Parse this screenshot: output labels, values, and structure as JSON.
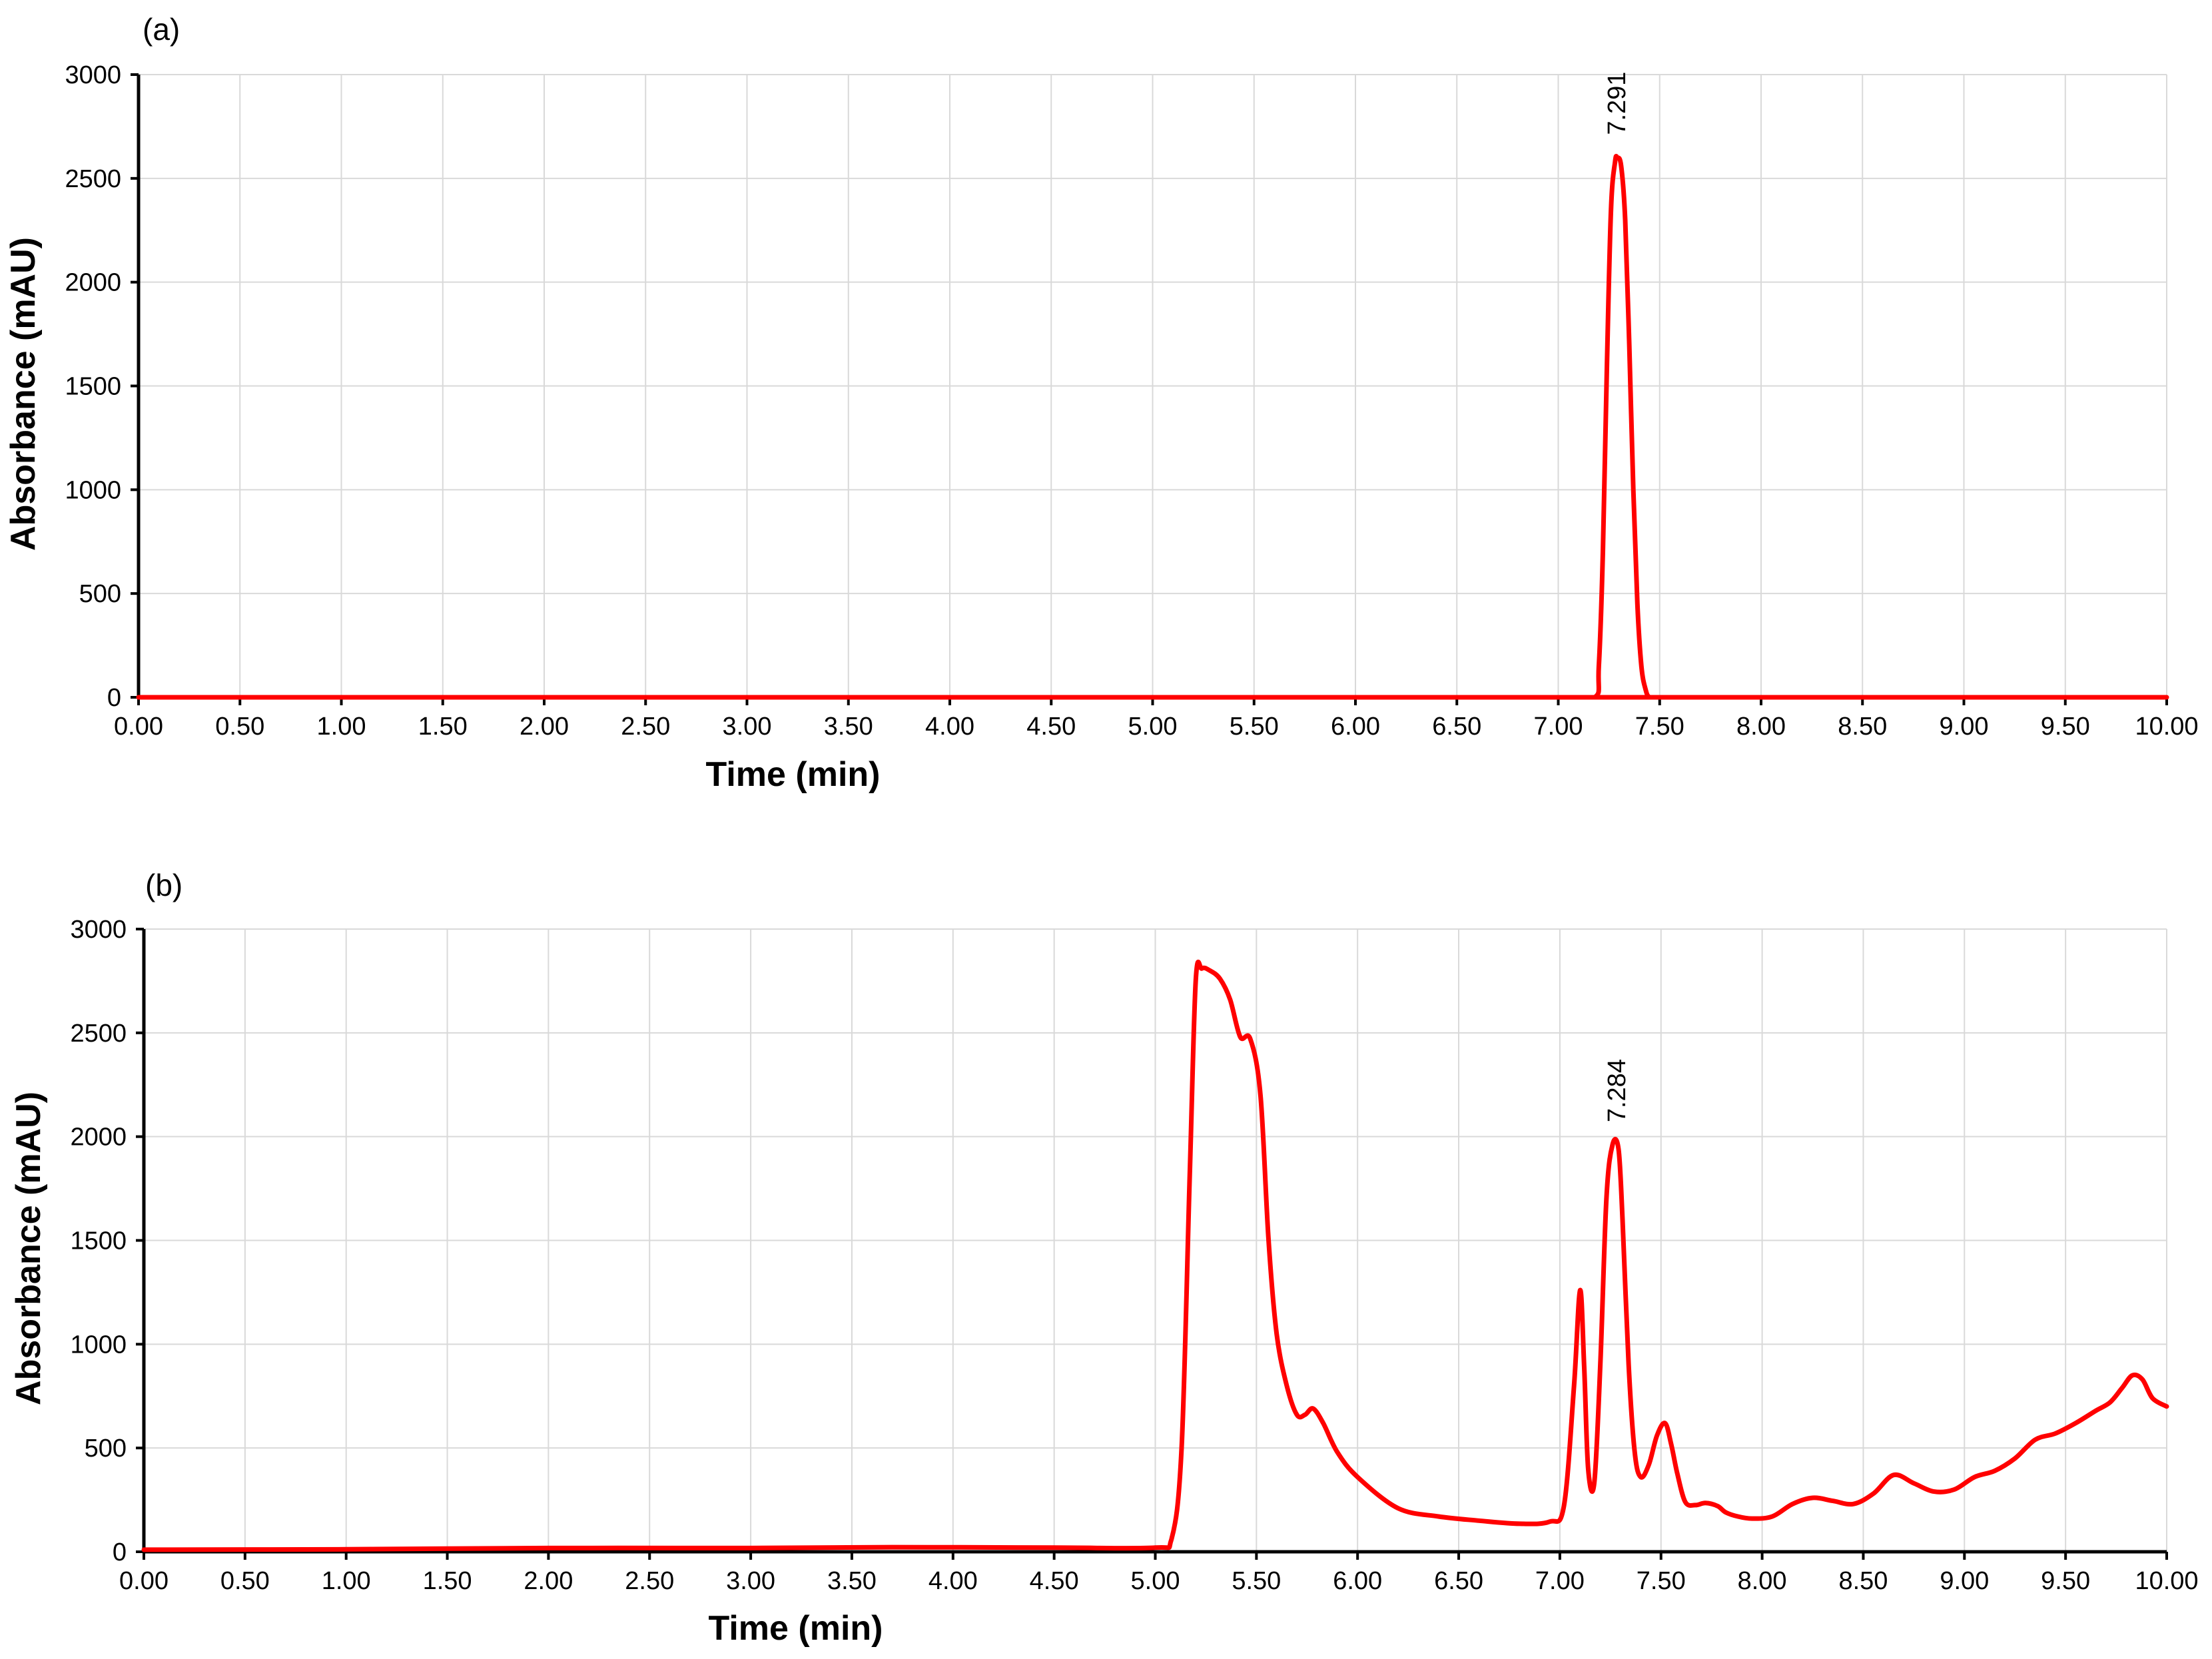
{
  "chart_data": [
    {
      "type": "line",
      "panel_label": "(a)",
      "xlabel": "Time (min)",
      "ylabel": "Absorbance (mAU)",
      "xlim": [
        0,
        10
      ],
      "ylim": [
        0,
        3000
      ],
      "x_ticks": [
        "0.00",
        "0.50",
        "1.00",
        "1.50",
        "2.00",
        "2.50",
        "3.00",
        "3.50",
        "4.00",
        "4.50",
        "5.00",
        "5.50",
        "6.00",
        "6.50",
        "7.00",
        "7.50",
        "8.00",
        "8.50",
        "9.00",
        "9.50",
        "10.00"
      ],
      "y_ticks": [
        "0",
        "500",
        "1000",
        "1500",
        "2000",
        "2500",
        "3000"
      ],
      "grid": true,
      "color": "#ff0000",
      "series": [
        {
          "x": [
            0,
            7.0,
            7.18,
            7.2,
            7.22,
            7.24,
            7.26,
            7.28,
            7.291,
            7.31,
            7.33,
            7.35,
            7.37,
            7.39,
            7.41,
            7.43,
            7.45,
            7.5,
            10
          ],
          "y": [
            0,
            0,
            0,
            150,
            700,
            1600,
            2350,
            2580,
            2600,
            2560,
            2300,
            1700,
            1000,
            450,
            150,
            40,
            0,
            0,
            0
          ]
        }
      ],
      "annotations": [
        {
          "text": "7.291",
          "x": 7.291,
          "y": 2600
        }
      ]
    },
    {
      "type": "line",
      "panel_label": "(b)",
      "xlabel": "Time (min)",
      "ylabel": "Absorbance (mAU)",
      "xlim": [
        0,
        10
      ],
      "ylim": [
        0,
        3000
      ],
      "x_ticks": [
        "0.00",
        "0.50",
        "1.00",
        "1.50",
        "2.00",
        "2.50",
        "3.00",
        "3.50",
        "4.00",
        "4.50",
        "5.00",
        "5.50",
        "6.00",
        "6.50",
        "7.00",
        "7.50",
        "8.00",
        "8.50",
        "9.00",
        "9.50",
        "10.00"
      ],
      "y_ticks": [
        "0",
        "500",
        "1000",
        "1500",
        "2000",
        "2500",
        "3000"
      ],
      "grid": true,
      "color": "#ff0000",
      "series": [
        {
          "x": [
            0,
            1.0,
            2.0,
            3.0,
            3.7,
            4.5,
            5.0,
            5.08,
            5.13,
            5.17,
            5.2,
            5.23,
            5.27,
            5.32,
            5.37,
            5.42,
            5.47,
            5.52,
            5.56,
            5.6,
            5.65,
            5.7,
            5.74,
            5.78,
            5.83,
            5.9,
            6.0,
            6.2,
            6.4,
            6.6,
            6.8,
            6.95,
            7.02,
            7.07,
            7.1,
            7.12,
            7.14,
            7.17,
            7.2,
            7.23,
            7.26,
            7.29,
            7.31,
            7.34,
            7.37,
            7.4,
            7.44,
            7.48,
            7.52,
            7.55,
            7.58,
            7.62,
            7.67,
            7.72,
            7.78,
            7.82,
            7.88,
            7.95,
            8.05,
            8.15,
            8.25,
            8.35,
            8.45,
            8.55,
            8.65,
            8.75,
            8.85,
            8.95,
            9.05,
            9.15,
            9.25,
            9.35,
            9.45,
            9.55,
            9.65,
            9.72,
            9.78,
            9.83,
            9.88,
            9.93,
            10.0
          ],
          "y": [
            10,
            12,
            18,
            18,
            22,
            20,
            20,
            60,
            500,
            1800,
            2750,
            2810,
            2800,
            2760,
            2660,
            2480,
            2470,
            2200,
            1500,
            1050,
            800,
            660,
            660,
            690,
            620,
            480,
            360,
            210,
            170,
            150,
            135,
            145,
            220,
            800,
            1260,
            900,
            400,
            330,
            900,
            1700,
            1960,
            1940,
            1600,
            900,
            480,
            360,
            420,
            560,
            620,
            520,
            380,
            240,
            225,
            235,
            220,
            190,
            170,
            160,
            170,
            230,
            260,
            245,
            230,
            280,
            370,
            330,
            290,
            300,
            360,
            390,
            450,
            540,
            570,
            620,
            680,
            720,
            790,
            850,
            830,
            740,
            700
          ]
        }
      ],
      "annotations": [
        {
          "text": "7.284",
          "x": 7.284,
          "y": 1960
        }
      ]
    }
  ]
}
